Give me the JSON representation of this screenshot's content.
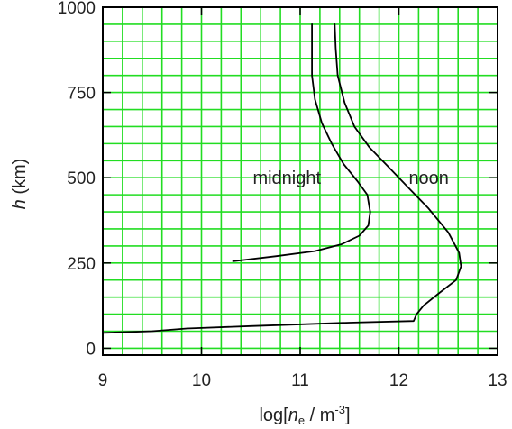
{
  "chart_data": {
    "type": "line",
    "xlabel": {
      "prefix": "log[",
      "var": "n",
      "sub": "e",
      "mid": " / m",
      "sup": "-3",
      "suffix": "]"
    },
    "ylabel": {
      "var": "h",
      "rest": " (km)"
    },
    "xlim": [
      9,
      13
    ],
    "ylim": [
      -20,
      1000
    ],
    "xticks": [
      9,
      10,
      11,
      12,
      13
    ],
    "yticks": [
      0,
      250,
      500,
      750,
      1000
    ],
    "grid": true,
    "grid_color": "#22dd22",
    "grid_x_step": 0.2,
    "grid_y_step": 50,
    "line_color": "#000000",
    "series": [
      {
        "name": "midnight",
        "points": [
          [
            11.12,
            950
          ],
          [
            11.12,
            880
          ],
          [
            11.12,
            800
          ],
          [
            11.15,
            730
          ],
          [
            11.22,
            660
          ],
          [
            11.32,
            600
          ],
          [
            11.44,
            540
          ],
          [
            11.58,
            490
          ],
          [
            11.68,
            450
          ],
          [
            11.71,
            400
          ],
          [
            11.69,
            360
          ],
          [
            11.6,
            330
          ],
          [
            11.42,
            305
          ],
          [
            11.15,
            285
          ],
          [
            10.75,
            270
          ],
          [
            10.32,
            255
          ]
        ]
      },
      {
        "name": "noon",
        "points": [
          [
            11.35,
            950
          ],
          [
            11.36,
            880
          ],
          [
            11.38,
            800
          ],
          [
            11.45,
            720
          ],
          [
            11.55,
            650
          ],
          [
            11.7,
            590
          ],
          [
            11.9,
            530
          ],
          [
            12.1,
            470
          ],
          [
            12.3,
            410
          ],
          [
            12.5,
            340
          ],
          [
            12.61,
            280
          ],
          [
            12.63,
            240
          ],
          [
            12.58,
            200
          ],
          [
            12.4,
            160
          ],
          [
            12.25,
            125
          ],
          [
            12.18,
            100
          ],
          [
            12.15,
            80
          ],
          [
            11.5,
            75
          ],
          [
            10.5,
            65
          ],
          [
            9.85,
            58
          ],
          [
            9.5,
            50
          ],
          [
            9.0,
            45
          ]
        ]
      }
    ],
    "annotations": [
      {
        "text": "midnight",
        "x": 10.52,
        "y": 500
      },
      {
        "text": "noon",
        "x": 12.1,
        "y": 500
      }
    ]
  }
}
